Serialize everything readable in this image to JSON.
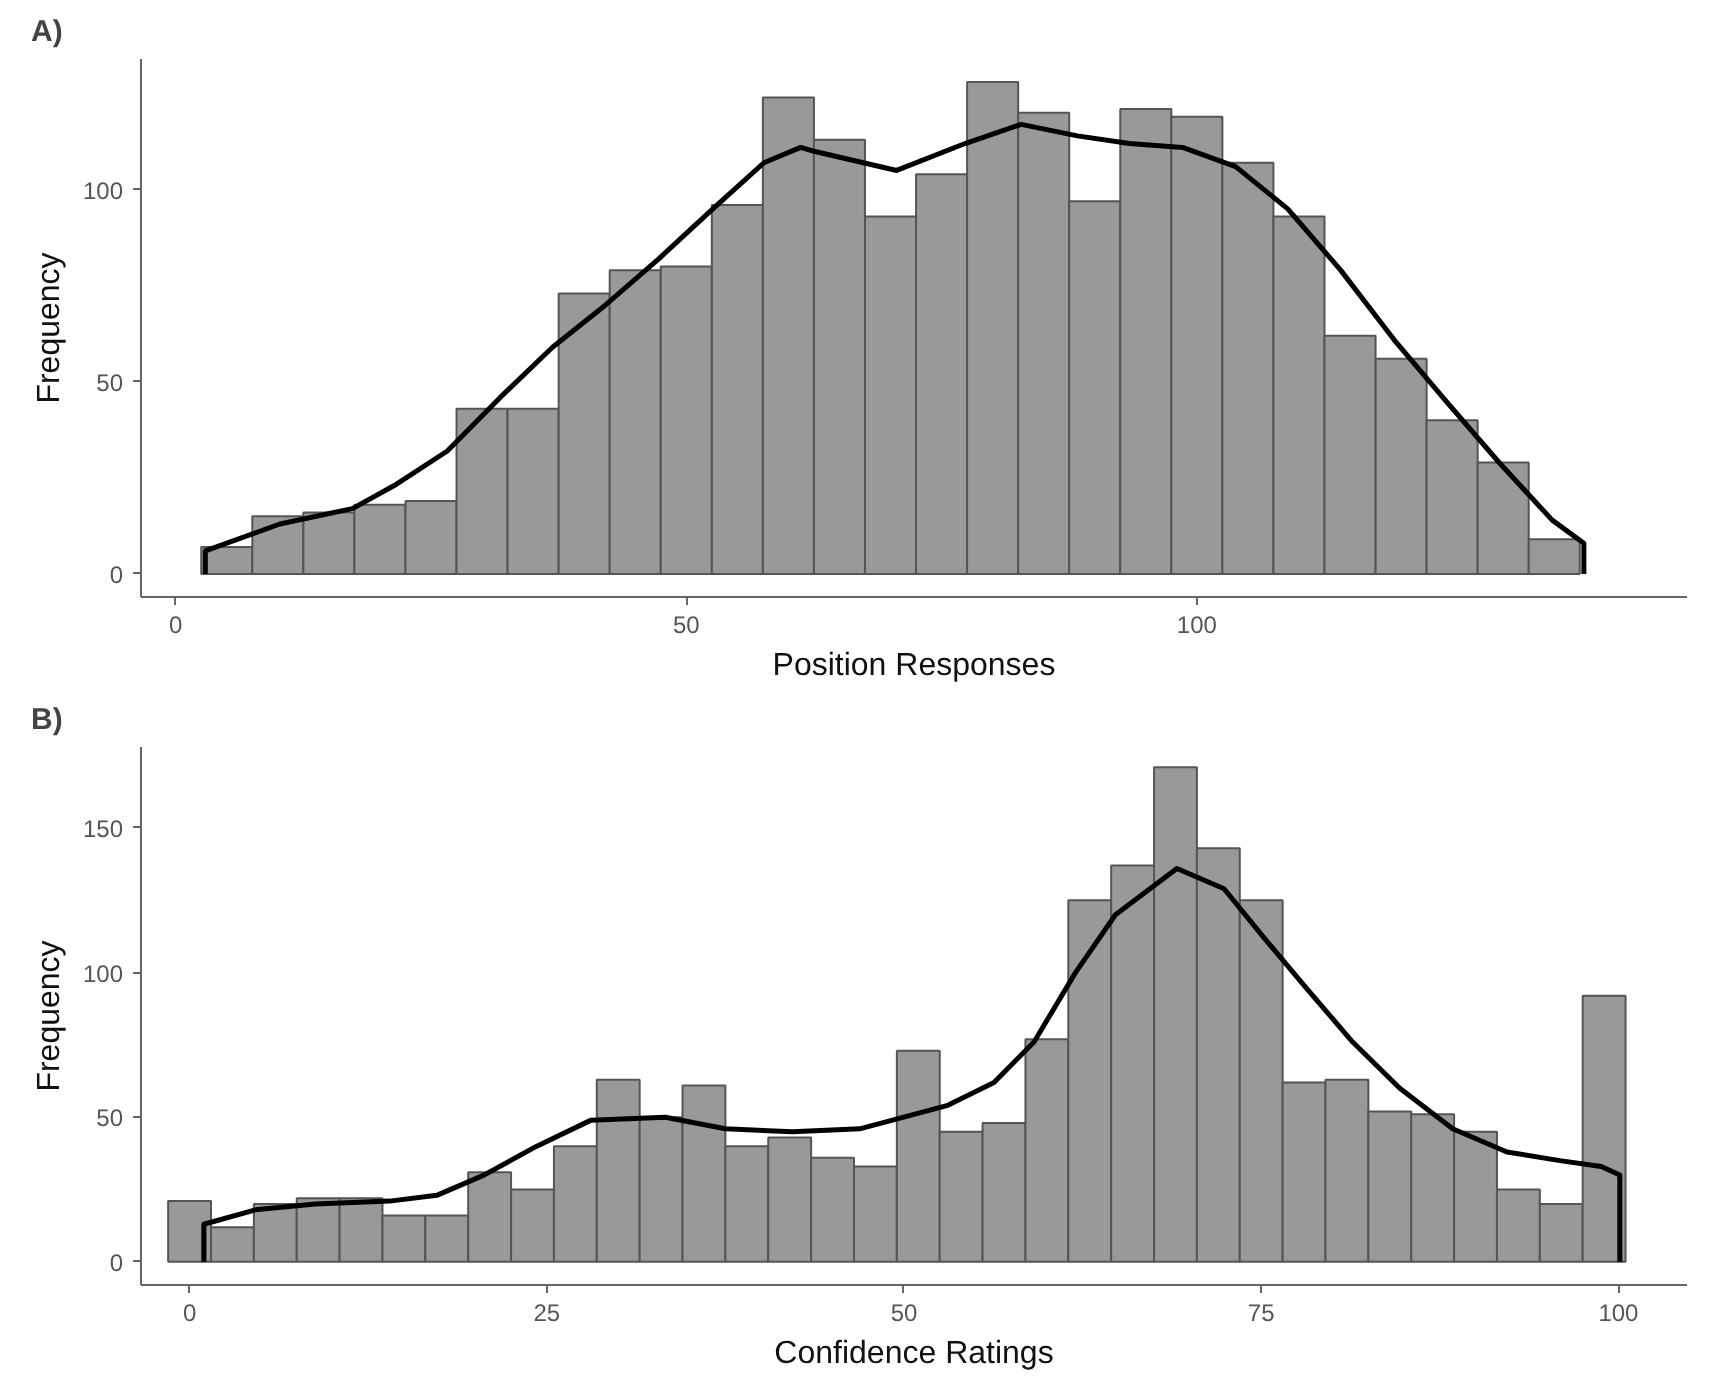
{
  "chart_data": [
    {
      "type": "histogram",
      "title": "A)",
      "xlabel": "Position Responses",
      "ylabel": "Frequency",
      "color": "#999999",
      "bins": [
        2.5,
        7.5,
        12.5,
        17.5,
        22.5,
        27.5,
        32.5,
        37.5,
        42.5,
        47.5,
        52.5,
        57.5,
        62.5,
        67.5,
        72.5,
        77.5,
        82.5,
        87.5,
        92.5,
        97.5,
        102.5,
        107.5,
        112.5,
        117.5,
        122.5,
        127.5,
        132.5,
        137.5
      ],
      "values": [
        7,
        15,
        16,
        18,
        19,
        43,
        43,
        73,
        79,
        80,
        96,
        124,
        113,
        93,
        104,
        128,
        120,
        97,
        121,
        119,
        107,
        93,
        62,
        56,
        40,
        29,
        9
      ],
      "series": [
        {
          "type": "line",
          "color": "#000000",
          "x": [
            2.9,
            2.9,
            10.2,
            17.3,
            21.4,
            26.6,
            31.8,
            36.9,
            42.1,
            47.3,
            52.6,
            57.6,
            61.2,
            62.5,
            70.6,
            77.3,
            82.8,
            88.3,
            93.4,
            98.6,
            103.8,
            108.9,
            114.1,
            119.3,
            124.4,
            129.6,
            134.8,
            137.9,
            137.9
          ],
          "values": [
            0,
            6,
            13,
            17,
            23,
            32,
            46,
            59,
            70,
            82,
            95,
            107,
            111,
            110,
            105,
            112,
            117,
            114,
            112,
            111,
            106,
            95,
            79,
            61,
            45,
            29,
            14,
            8,
            0
          ]
        }
      ],
      "xlim": [
        -3.4,
        148
      ],
      "ylim": [
        -6,
        134
      ],
      "xticks": [
        0,
        50,
        100
      ],
      "yticks": [
        0,
        50,
        100
      ],
      "grid": false
    },
    {
      "type": "histogram",
      "title": "B)",
      "xlabel": "Confidence Ratings",
      "ylabel": "Frequency",
      "color": "#999999",
      "bins": [
        -1.5,
        1.5,
        4.5,
        7.5,
        10.5,
        13.5,
        16.5,
        19.5,
        22.5,
        25.5,
        28.5,
        31.5,
        34.5,
        37.5,
        40.5,
        43.5,
        46.5,
        49.5,
        52.5,
        55.5,
        58.5,
        61.5,
        64.5,
        67.5,
        70.5,
        73.5,
        76.5,
        79.5,
        82.5,
        85.5,
        88.5,
        91.5,
        94.5,
        97.5,
        100.5
      ],
      "values": [
        21,
        12,
        20,
        22,
        22,
        16,
        16,
        31,
        25,
        40,
        63,
        50,
        61,
        40,
        43,
        36,
        33,
        73,
        45,
        48,
        77,
        125,
        137,
        171,
        143,
        125,
        62,
        63,
        52,
        51,
        45,
        25,
        20,
        92
      ],
      "series": [
        {
          "type": "line",
          "color": "#000000",
          "x": [
            1.0,
            1.0,
            4.6,
            8.8,
            14.0,
            17.3,
            20.6,
            24.3,
            28.1,
            33.3,
            37.5,
            42.2,
            46.9,
            53.0,
            56.3,
            59.1,
            62.0,
            64.8,
            69.1,
            72.4,
            75.2,
            78.1,
            81.4,
            84.7,
            88.4,
            92.2,
            95.9,
            98.8,
            100.1,
            100.1
          ],
          "values": [
            0,
            13,
            18,
            20,
            21,
            23,
            30,
            40,
            49,
            50,
            46,
            45,
            46,
            54,
            62,
            76,
            100,
            120,
            136,
            129,
            112,
            95,
            76,
            60,
            46,
            38,
            35,
            33,
            30,
            0
          ]
        }
      ],
      "xlim": [
        -3.4,
        104.8
      ],
      "ylim": [
        -8,
        178
      ],
      "xticks": [
        0,
        25,
        50,
        75,
        100
      ],
      "yticks": [
        0,
        50,
        100,
        150
      ],
      "grid": false
    }
  ]
}
